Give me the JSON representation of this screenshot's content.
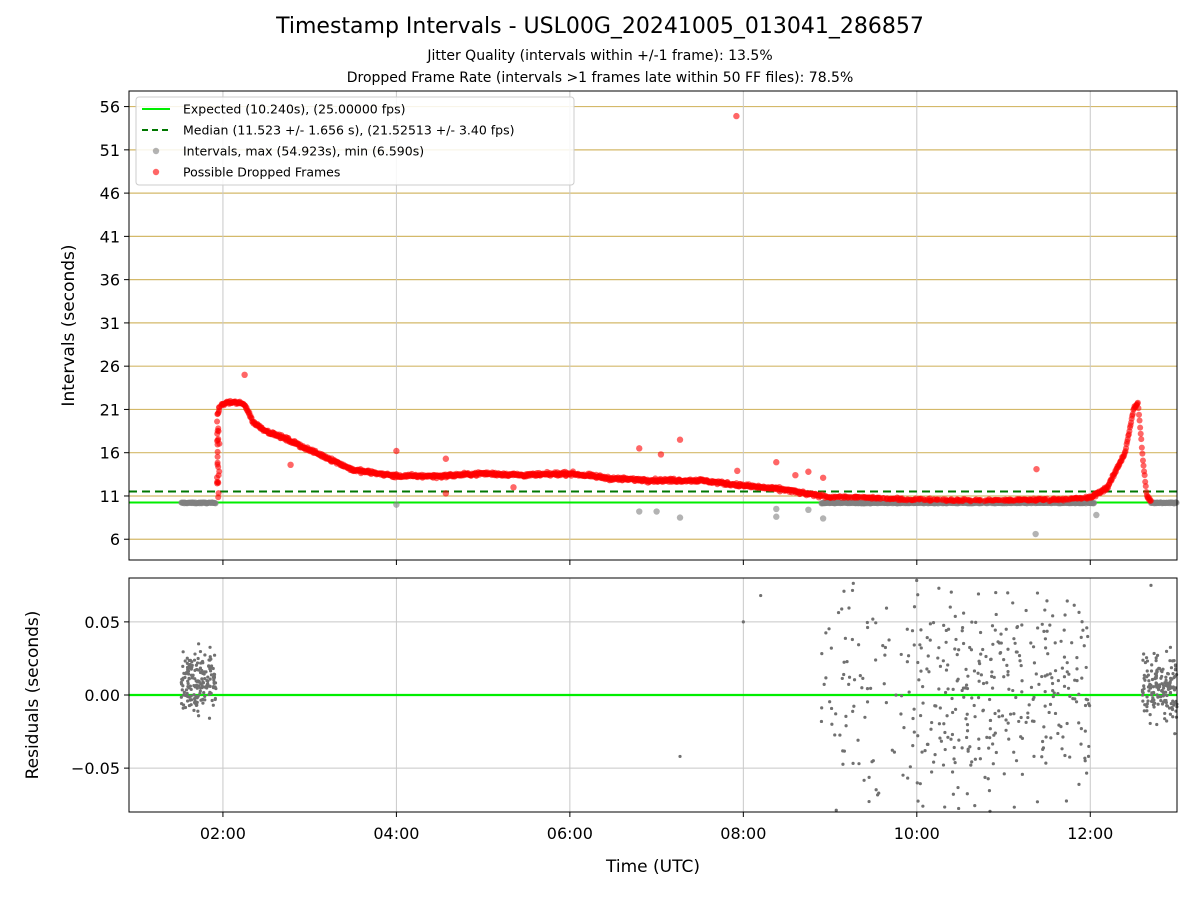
{
  "title": "Timestamp Intervals - USL00G_20241005_013041_286857",
  "subtitle1": "Jitter Quality (intervals within +/-1 frame): 13.5%",
  "subtitle2": "Dropped Frame Rate (intervals >1 frames late within 50 FF files): 78.5%",
  "colors": {
    "expected": "#00ee00",
    "median": "#007700",
    "intervals": "#808080",
    "dropped": "#ff0000",
    "hgrid_top": "#d4b96a",
    "grid": "#c8c8c8"
  },
  "chart_data": [
    {
      "type": "scatter",
      "panel": "top",
      "ylabel": "Intervals (seconds)",
      "ylim": [
        3.6,
        57.8
      ],
      "xlim_hours": [
        0.917,
        13.0
      ],
      "yticks": [
        6,
        11,
        16,
        21,
        26,
        31,
        36,
        41,
        46,
        51,
        56
      ],
      "grid": "horizontal gold lines, vertical gray lines",
      "legend_position": "top-left",
      "legend": [
        "Expected (10.240s), (25.00000 fps)",
        "Median (11.523 +/- 1.656 s), (21.52513 +/- 3.40 fps)",
        "Intervals, max (54.923s), min (6.590s)",
        "Possible Dropped Frames"
      ],
      "expected_line": 10.24,
      "median_line": 11.523,
      "series": [
        {
          "name": "Possible Dropped Frames",
          "trend_x_hours": [
            1.92,
            1.98,
            2.05,
            2.15,
            2.25,
            2.35,
            2.5,
            2.75,
            3.0,
            3.25,
            3.5,
            4.0,
            4.5,
            5.0,
            5.5,
            6.0,
            6.5,
            7.0,
            7.5,
            8.0,
            8.5,
            8.75,
            9.0,
            9.5,
            9.8,
            10.2,
            10.5,
            10.8,
            11.6,
            12.0,
            12.2,
            12.4,
            12.5,
            12.55,
            12.6,
            12.65,
            12.7
          ],
          "trend_y": [
            12.5,
            21.5,
            21.8,
            21.8,
            21.6,
            19.5,
            18.5,
            17.5,
            16.3,
            15.2,
            14.0,
            13.3,
            13.3,
            13.6,
            13.4,
            13.6,
            13.0,
            12.8,
            12.8,
            12.2,
            11.7,
            11.2,
            10.9,
            10.8,
            10.6,
            10.6,
            10.5,
            10.5,
            10.6,
            10.8,
            12.0,
            16.0,
            21.0,
            21.8,
            16.0,
            11.0,
            10.4
          ],
          "outliers": [
            {
              "x_hours": 7.92,
              "y": 54.9
            },
            {
              "x_hours": 2.25,
              "y": 25.0
            },
            {
              "x_hours": 7.27,
              "y": 17.5
            },
            {
              "x_hours": 6.8,
              "y": 16.5
            },
            {
              "x_hours": 4.0,
              "y": 16.2
            },
            {
              "x_hours": 4.57,
              "y": 15.3
            },
            {
              "x_hours": 7.05,
              "y": 15.8
            },
            {
              "x_hours": 8.38,
              "y": 14.9
            },
            {
              "x_hours": 11.38,
              "y": 14.1
            },
            {
              "x_hours": 7.93,
              "y": 13.9
            },
            {
              "x_hours": 8.75,
              "y": 13.8
            },
            {
              "x_hours": 8.6,
              "y": 13.4
            },
            {
              "x_hours": 8.92,
              "y": 13.1
            },
            {
              "x_hours": 2.78,
              "y": 14.6
            },
            {
              "x_hours": 5.35,
              "y": 12.0
            },
            {
              "x_hours": 4.57,
              "y": 11.3
            }
          ]
        },
        {
          "name": "Intervals",
          "segments_x_hours": [
            [
              1.52,
              1.92
            ],
            [
              8.9,
              12.05
            ],
            [
              12.7,
              13.0
            ]
          ],
          "typical_y": 10.2,
          "outliers": [
            {
              "x_hours": 11.37,
              "y": 6.6
            },
            {
              "x_hours": 6.8,
              "y": 9.2
            },
            {
              "x_hours": 7.27,
              "y": 8.5
            },
            {
              "x_hours": 7.0,
              "y": 9.2
            },
            {
              "x_hours": 8.38,
              "y": 8.6
            },
            {
              "x_hours": 8.92,
              "y": 8.4
            },
            {
              "x_hours": 12.07,
              "y": 8.8
            },
            {
              "x_hours": 4.0,
              "y": 10.0
            },
            {
              "x_hours": 8.38,
              "y": 9.5
            },
            {
              "x_hours": 8.75,
              "y": 9.4
            }
          ]
        }
      ]
    },
    {
      "type": "scatter",
      "panel": "bottom",
      "xlabel": "Time (UTC)",
      "ylabel": "Residuals (seconds)",
      "ylim": [
        -0.08,
        0.08
      ],
      "yticks": [
        -0.05,
        0.0,
        0.05
      ],
      "ytick_labels": [
        "−0.05",
        "0.00",
        "0.05"
      ],
      "xticks_hours": [
        2,
        4,
        6,
        8,
        10,
        12
      ],
      "xtick_labels": [
        "02:00",
        "04:00",
        "06:00",
        "08:00",
        "10:00",
        "12:00"
      ],
      "zero_line": 0.0,
      "series": [
        {
          "name": "Residuals",
          "clusters": [
            {
              "x_hours": [
                1.52,
                1.92
              ],
              "y_range": [
                -0.03,
                0.05
              ],
              "count": 180
            },
            {
              "x_hours": [
                8.9,
                10.0
              ],
              "y_range": [
                -0.08,
                0.08
              ],
              "count": 90
            },
            {
              "x_hours": [
                10.0,
                11.0
              ],
              "y_range": [
                -0.08,
                0.08
              ],
              "count": 170
            },
            {
              "x_hours": [
                11.0,
                12.0
              ],
              "y_range": [
                -0.08,
                0.08
              ],
              "count": 150
            },
            {
              "x_hours": [
                12.6,
                13.0
              ],
              "y_range": [
                -0.035,
                0.045
              ],
              "count": 170
            }
          ],
          "isolated": [
            {
              "x_hours": 7.27,
              "y": -0.042
            },
            {
              "x_hours": 8.0,
              "y": 0.05
            },
            {
              "x_hours": 8.2,
              "y": 0.068
            },
            {
              "x_hours": 12.7,
              "y": 0.075
            }
          ]
        }
      ]
    }
  ]
}
